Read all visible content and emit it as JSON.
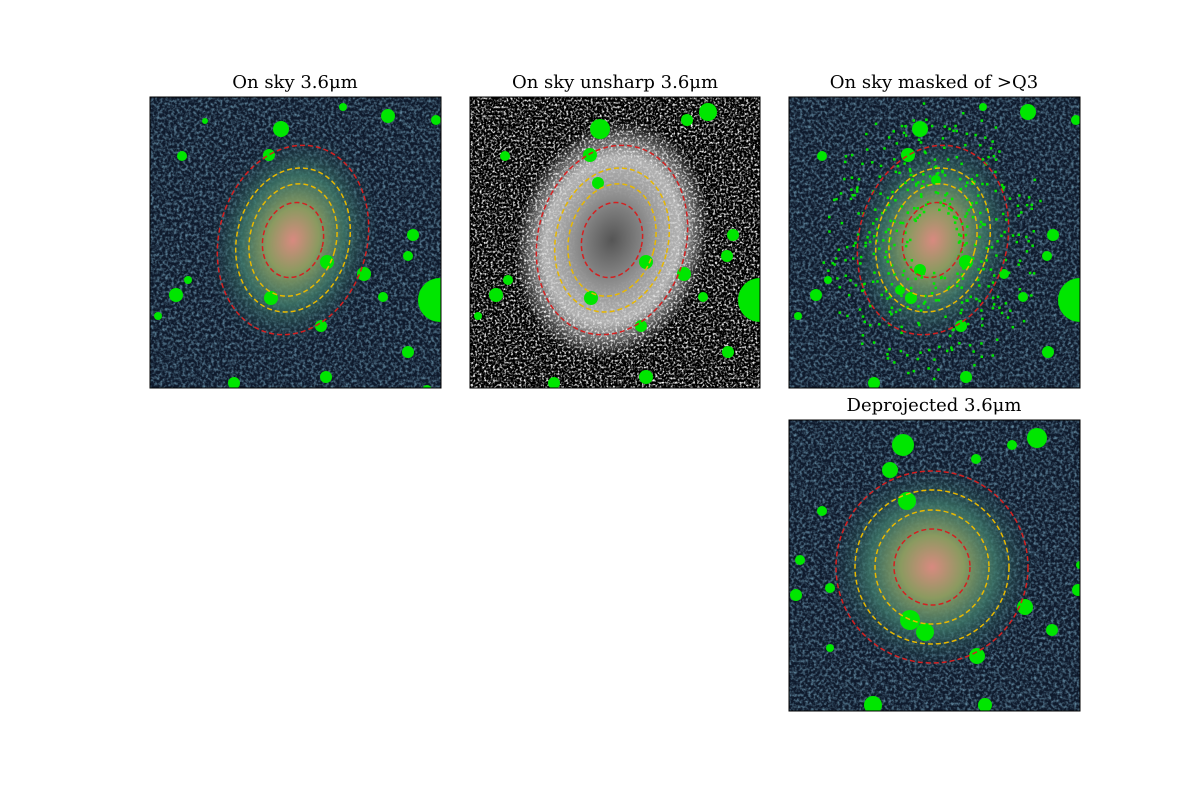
{
  "panels": [
    {
      "title": "On sky 3.6μm"
    },
    {
      "title": "On sky unsharp 3.6μm"
    },
    {
      "title": "On sky masked of >Q3"
    },
    {
      "title": "Deprojected 3.6μm"
    }
  ]
}
